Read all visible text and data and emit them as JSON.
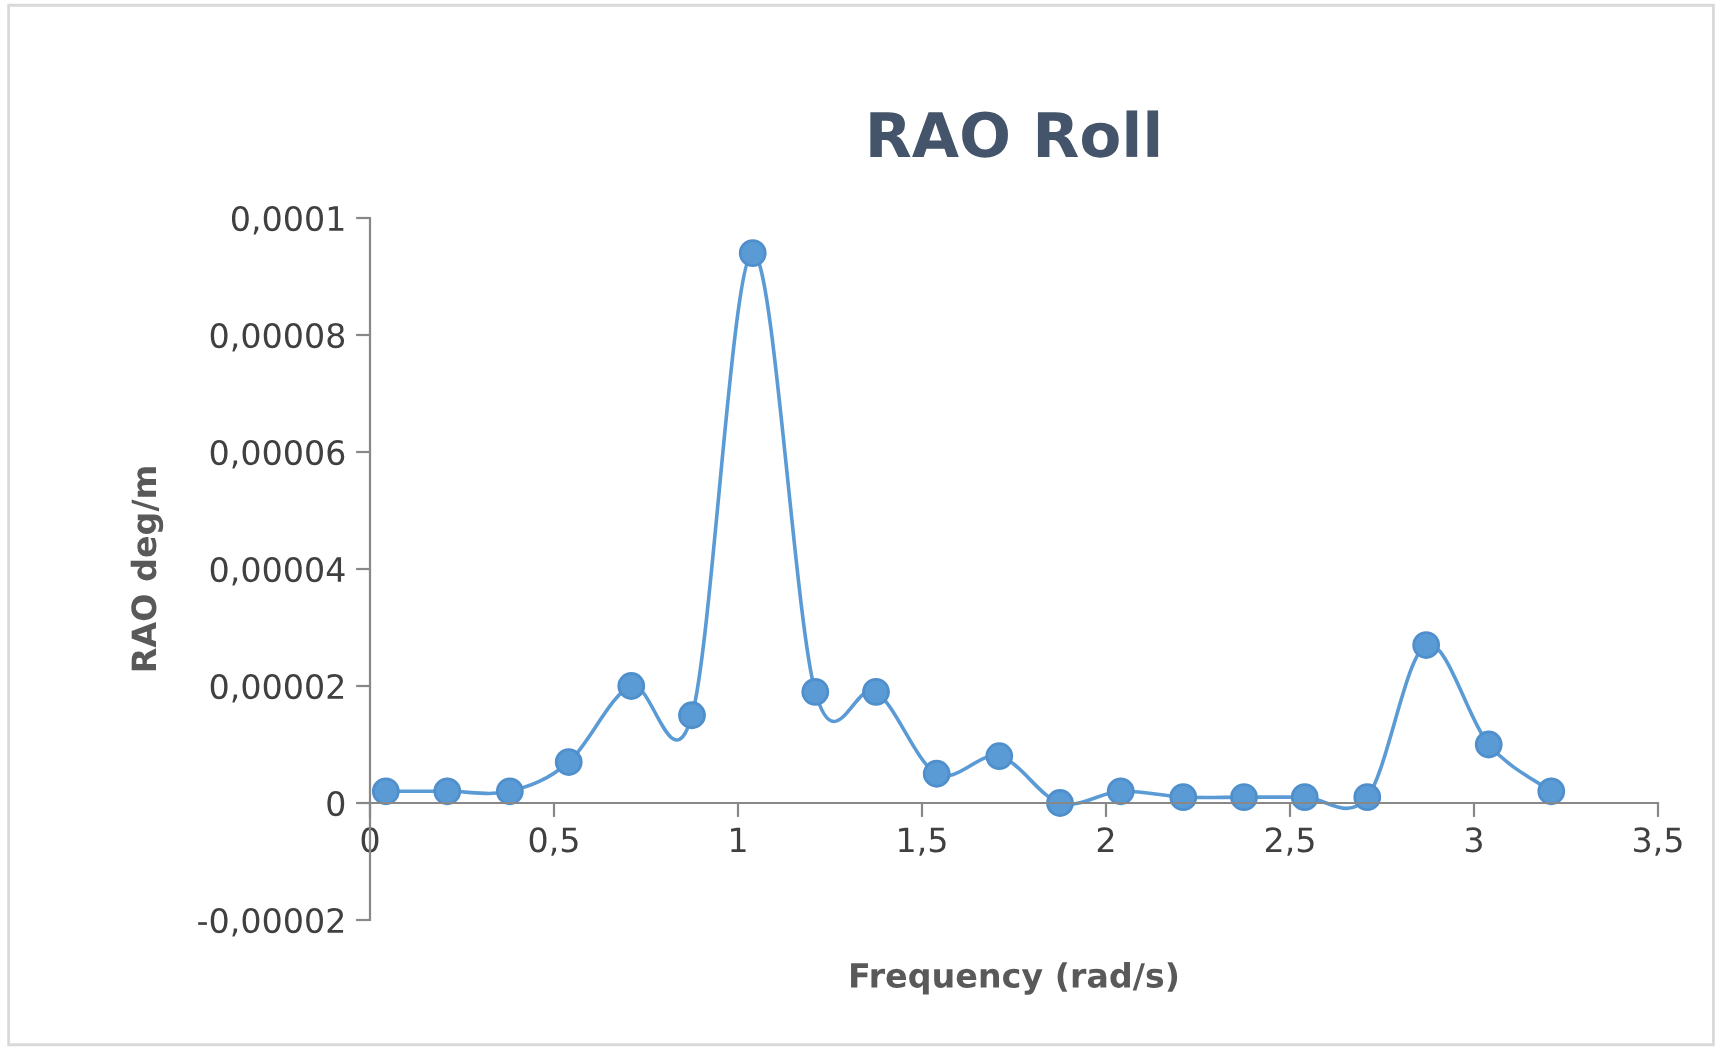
{
  "chart_data": {
    "type": "line",
    "title": "RAO Roll",
    "xlabel": "Frequency (rad/s)",
    "ylabel": "RAO deg/m",
    "x": [
      0.043,
      0.21,
      0.38,
      0.54,
      0.71,
      0.875,
      1.04,
      1.21,
      1.375,
      1.54,
      1.71,
      1.875,
      2.04,
      2.21,
      2.375,
      2.54,
      2.71,
      2.87,
      3.04,
      3.21
    ],
    "series": [
      {
        "color": "#5b9bd5",
        "values": [
          2e-06,
          2e-06,
          2e-06,
          7e-06,
          2e-05,
          1.5e-05,
          9.4e-05,
          1.9e-05,
          1.9e-05,
          5e-06,
          8e-06,
          0,
          2e-06,
          1e-06,
          1e-06,
          1e-06,
          1e-06,
          2.7e-05,
          1e-05,
          2e-06
        ]
      }
    ],
    "xlim": [
      0,
      3.5
    ],
    "xticks": [
      0,
      {
        "value": 0.5,
        "label": "0,5"
      },
      1,
      {
        "value": 1.5,
        "label": "1,5"
      },
      2,
      {
        "value": 2.5,
        "label": "2,5"
      },
      3,
      {
        "value": 3.5,
        "label": "3,5"
      }
    ],
    "ylim": [
      -2e-05,
      0.0001
    ],
    "yticks": [
      {
        "value": -2e-05,
        "label": "-0,00002"
      },
      {
        "value": 0,
        "label": "0"
      },
      {
        "value": 2e-05,
        "label": "0,00002"
      },
      {
        "value": 4e-05,
        "label": "0,00004"
      },
      {
        "value": 6e-05,
        "label": "0,00006"
      },
      {
        "value": 8e-05,
        "label": "0,00008"
      },
      {
        "value": 0.0001,
        "label": "0,0001"
      }
    ],
    "marker": "circle",
    "line_style": "solid",
    "grid": false,
    "legend": false
  }
}
